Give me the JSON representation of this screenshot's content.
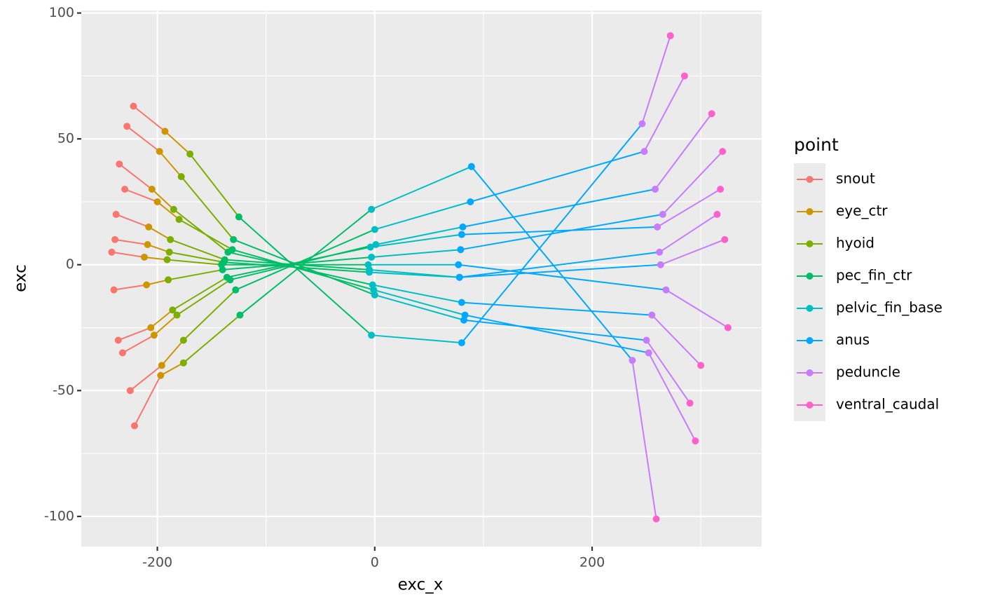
{
  "chart_data": {
    "type": "line",
    "x_label": "exc_x",
    "y_label": "exc",
    "legend_title": "point",
    "legend_position": "right",
    "grid": true,
    "xlim": [
      -270,
      356
    ],
    "ylim": [
      -112,
      101
    ],
    "xticks": [
      -200,
      0,
      200
    ],
    "yticks": [
      -100,
      -50,
      0,
      50,
      100
    ],
    "x_minor_ticks": [
      -100,
      100,
      300
    ],
    "y_minor_ticks": [
      -75,
      -25,
      25,
      75
    ],
    "series": [
      {
        "name": "snout",
        "color": "#F8766D",
        "x": [
          -235,
          -228,
          -238,
          -240,
          -232,
          -225,
          -236,
          -242,
          -230,
          -222,
          -221,
          -239
        ],
        "values": [
          40,
          55,
          20,
          -10,
          -35,
          -50,
          -30,
          5,
          30,
          63,
          -64,
          10
        ]
      },
      {
        "name": "eye_ctr",
        "color": "#CD9600",
        "x": [
          -205,
          -198,
          -208,
          -210,
          -203,
          -196,
          -206,
          -212,
          -200,
          -193,
          -197,
          -209
        ],
        "values": [
          30,
          45,
          15,
          -8,
          -28,
          -40,
          -25,
          3,
          25,
          53,
          -44,
          8
        ]
      },
      {
        "name": "hyoid",
        "color": "#7CAE00",
        "x": [
          -185,
          -178,
          -188,
          -190,
          -182,
          -176,
          -186,
          -191,
          -180,
          -170,
          -176,
          -189
        ],
        "values": [
          22,
          35,
          10,
          -6,
          -20,
          -30,
          -18,
          2,
          18,
          44,
          -39,
          5
        ]
      },
      {
        "name": "pec_fin_ctr",
        "color": "#00BE67",
        "x": [
          -135,
          -130,
          -138,
          -140,
          -133,
          -128,
          -136,
          -141,
          -131,
          -125,
          -124,
          -139
        ],
        "values": [
          5,
          10,
          2,
          -2,
          -6,
          -10,
          -5,
          0,
          6,
          19,
          -20,
          1
        ]
      },
      {
        "name": "pelvic_fin_base",
        "color": "#00BFC4",
        "x": [
          -2,
          0,
          -5,
          -3,
          1,
          0,
          -4,
          -6,
          -1,
          -3,
          -3,
          -5
        ],
        "values": [
          -8,
          -12,
          -2,
          3,
          8,
          14,
          7,
          0,
          -10,
          -28,
          22,
          -3
        ]
      },
      {
        "name": "anus",
        "color": "#00A9FF",
        "x": [
          80,
          82,
          78,
          79,
          81,
          88,
          80,
          77,
          83,
          80,
          89,
          78
        ],
        "values": [
          -15,
          -22,
          -5,
          6,
          15,
          25,
          12,
          0,
          -20,
          -31,
          39,
          -5
        ]
      },
      {
        "name": "peduncle",
        "color": "#C77CFF",
        "x": [
          255,
          250,
          262,
          265,
          258,
          248,
          260,
          268,
          252,
          246,
          237,
          263
        ],
        "values": [
          -20,
          -30,
          5,
          20,
          30,
          45,
          15,
          -10,
          -35,
          56,
          -38,
          0
        ]
      },
      {
        "name": "ventral_caudal",
        "color": "#FF61CC",
        "x": [
          300,
          290,
          315,
          320,
          310,
          285,
          318,
          325,
          295,
          272,
          259,
          322
        ],
        "values": [
          -40,
          -55,
          20,
          45,
          60,
          75,
          30,
          -25,
          -70,
          91,
          -101,
          10
        ]
      }
    ]
  }
}
